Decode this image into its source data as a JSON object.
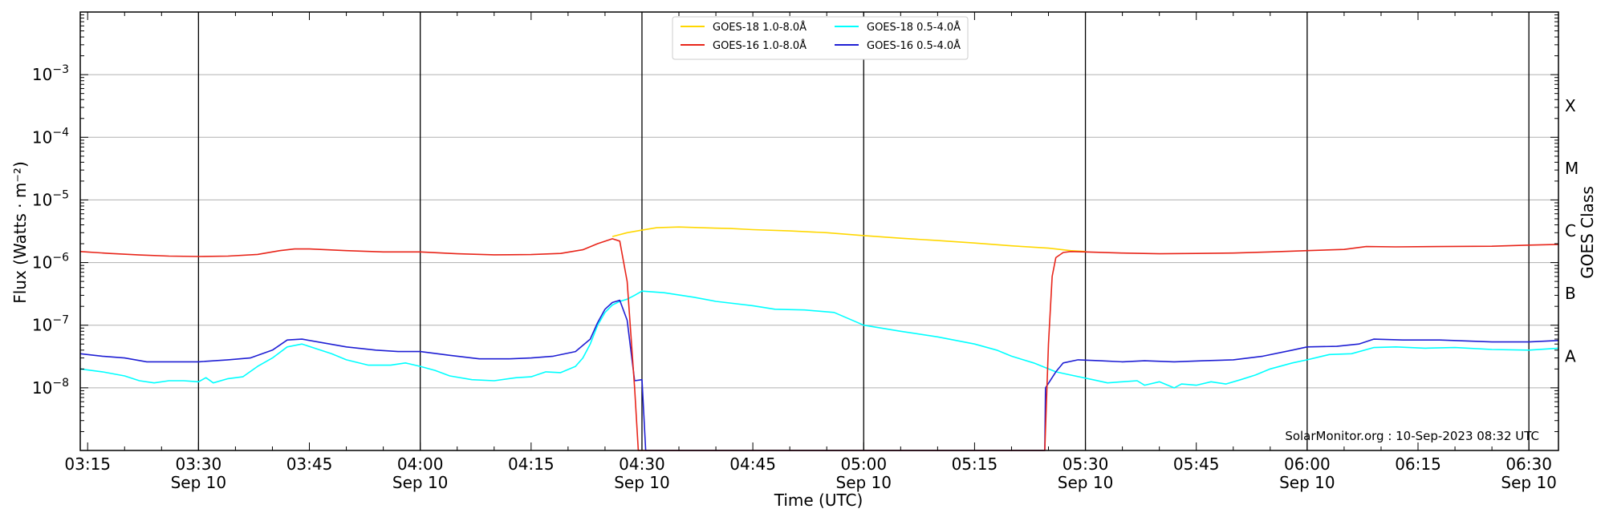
{
  "chart_data": {
    "type": "line",
    "xlabel": "Time (UTC)",
    "ylabel": "Flux (Watts · m⁻²)",
    "y2label": "GOES Class",
    "yscale": "log",
    "ylim": [
      1e-09,
      0.01
    ],
    "xlim": [
      "03:14",
      "06:34"
    ],
    "grid": "horizontal major lines; vertical lines at 30-minute intervals",
    "legend_position": "top-center",
    "credit": "SolarMonitor.org : 10-Sep-2023 08:32 UTC",
    "x_ticks": [
      {
        "t": "03:15",
        "line1": "03:15",
        "line2": ""
      },
      {
        "t": "03:30",
        "line1": "03:30",
        "line2": "Sep 10"
      },
      {
        "t": "03:45",
        "line1": "03:45",
        "line2": ""
      },
      {
        "t": "04:00",
        "line1": "04:00",
        "line2": "Sep 10"
      },
      {
        "t": "04:15",
        "line1": "04:15",
        "line2": ""
      },
      {
        "t": "04:30",
        "line1": "04:30",
        "line2": "Sep 10"
      },
      {
        "t": "04:45",
        "line1": "04:45",
        "line2": ""
      },
      {
        "t": "05:00",
        "line1": "05:00",
        "line2": "Sep 10"
      },
      {
        "t": "05:15",
        "line1": "05:15",
        "line2": ""
      },
      {
        "t": "05:30",
        "line1": "05:30",
        "line2": "Sep 10"
      },
      {
        "t": "05:45",
        "line1": "05:45",
        "line2": ""
      },
      {
        "t": "06:00",
        "line1": "06:00",
        "line2": "Sep 10"
      },
      {
        "t": "06:15",
        "line1": "06:15",
        "line2": ""
      },
      {
        "t": "06:30",
        "line1": "06:30",
        "line2": "Sep 10"
      }
    ],
    "vertical_lines": [
      "03:30",
      "04:00",
      "04:30",
      "05:00",
      "05:30",
      "06:00",
      "06:30"
    ],
    "y_ticks": [
      {
        "value": 1e-08,
        "base": "10",
        "exp": "−8"
      },
      {
        "value": 1e-07,
        "base": "10",
        "exp": "−7"
      },
      {
        "value": 1e-06,
        "base": "10",
        "exp": "−6"
      },
      {
        "value": 1e-05,
        "base": "10",
        "exp": "−5"
      },
      {
        "value": 0.0001,
        "base": "10",
        "exp": "−4"
      },
      {
        "value": 0.001,
        "base": "10",
        "exp": "−3"
      }
    ],
    "goes_classes": [
      {
        "label": "A",
        "flux": 3.2e-08
      },
      {
        "label": "B",
        "flux": 3.2e-07
      },
      {
        "label": "C",
        "flux": 3.2e-06
      },
      {
        "label": "M",
        "flux": 3.2e-05
      },
      {
        "label": "X",
        "flux": 0.00032
      }
    ],
    "series": [
      {
        "name": "GOES-18 1.0-8.0Å",
        "color": "#ffd700",
        "points": [
          [
            "04:26",
            2.6e-06
          ],
          [
            "04:28",
            3e-06
          ],
          [
            "04:30",
            3.3e-06
          ],
          [
            "04:32",
            3.6e-06
          ],
          [
            "04:35",
            3.7e-06
          ],
          [
            "04:38",
            3.6e-06
          ],
          [
            "04:42",
            3.5e-06
          ],
          [
            "04:45",
            3.35e-06
          ],
          [
            "04:50",
            3.2e-06
          ],
          [
            "04:55",
            3e-06
          ],
          [
            "05:00",
            2.7e-06
          ],
          [
            "05:05",
            2.45e-06
          ],
          [
            "05:10",
            2.25e-06
          ],
          [
            "05:15",
            2.05e-06
          ],
          [
            "05:20",
            1.85e-06
          ],
          [
            "05:25",
            1.7e-06
          ],
          [
            "05:28",
            1.55e-06
          ],
          [
            "05:30",
            1.5e-06
          ]
        ]
      },
      {
        "name": "GOES-16 1.0-8.0Å",
        "color": "#e8251a",
        "points": [
          [
            "03:14",
            1.5e-06
          ],
          [
            "03:18",
            1.4e-06
          ],
          [
            "03:22",
            1.32e-06
          ],
          [
            "03:26",
            1.27e-06
          ],
          [
            "03:30",
            1.25e-06
          ],
          [
            "03:34",
            1.27e-06
          ],
          [
            "03:38",
            1.35e-06
          ],
          [
            "03:41",
            1.55e-06
          ],
          [
            "03:43",
            1.65e-06
          ],
          [
            "03:45",
            1.65e-06
          ],
          [
            "03:50",
            1.55e-06
          ],
          [
            "03:55",
            1.48e-06
          ],
          [
            "04:00",
            1.48e-06
          ],
          [
            "04:05",
            1.38e-06
          ],
          [
            "04:10",
            1.33e-06
          ],
          [
            "04:15",
            1.34e-06
          ],
          [
            "04:19",
            1.4e-06
          ],
          [
            "04:22",
            1.6e-06
          ],
          [
            "04:24",
            2e-06
          ],
          [
            "04:26",
            2.4e-06
          ],
          [
            "04:27",
            2.2e-06
          ],
          [
            "04:28",
            5e-07
          ],
          [
            "04:29",
            1e-08
          ],
          [
            "04:29.5",
            1e-09
          ],
          [
            "05:24.5",
            1e-09
          ],
          [
            "05:25",
            5e-08
          ],
          [
            "05:25.5",
            6e-07
          ],
          [
            "05:26",
            1.2e-06
          ],
          [
            "05:27",
            1.45e-06
          ],
          [
            "05:28",
            1.5e-06
          ],
          [
            "05:30",
            1.48e-06
          ],
          [
            "05:35",
            1.42e-06
          ],
          [
            "05:40",
            1.38e-06
          ],
          [
            "05:45",
            1.4e-06
          ],
          [
            "05:50",
            1.42e-06
          ],
          [
            "05:55",
            1.48e-06
          ],
          [
            "06:00",
            1.55e-06
          ],
          [
            "06:05",
            1.62e-06
          ],
          [
            "06:08",
            1.8e-06
          ],
          [
            "06:12",
            1.78e-06
          ],
          [
            "06:18",
            1.8e-06
          ],
          [
            "06:25",
            1.82e-06
          ],
          [
            "06:30",
            1.9e-06
          ],
          [
            "06:34",
            1.95e-06
          ]
        ]
      },
      {
        "name": "GOES-18 0.5-4.0Å",
        "color": "#00ffff",
        "points": [
          [
            "03:14",
            2e-08
          ],
          [
            "03:17",
            1.8e-08
          ],
          [
            "03:20",
            1.55e-08
          ],
          [
            "03:22",
            1.3e-08
          ],
          [
            "03:24",
            1.2e-08
          ],
          [
            "03:26",
            1.3e-08
          ],
          [
            "03:28",
            1.3e-08
          ],
          [
            "03:30",
            1.25e-08
          ],
          [
            "03:31",
            1.45e-08
          ],
          [
            "03:32",
            1.2e-08
          ],
          [
            "03:34",
            1.4e-08
          ],
          [
            "03:36",
            1.5e-08
          ],
          [
            "03:38",
            2.2e-08
          ],
          [
            "03:40",
            3e-08
          ],
          [
            "03:42",
            4.5e-08
          ],
          [
            "03:44",
            5e-08
          ],
          [
            "03:46",
            4.2e-08
          ],
          [
            "03:48",
            3.5e-08
          ],
          [
            "03:50",
            2.8e-08
          ],
          [
            "03:53",
            2.3e-08
          ],
          [
            "03:56",
            2.3e-08
          ],
          [
            "03:58",
            2.5e-08
          ],
          [
            "04:00",
            2.2e-08
          ],
          [
            "04:02",
            1.9e-08
          ],
          [
            "04:04",
            1.55e-08
          ],
          [
            "04:07",
            1.35e-08
          ],
          [
            "04:10",
            1.3e-08
          ],
          [
            "04:13",
            1.45e-08
          ],
          [
            "04:15",
            1.5e-08
          ],
          [
            "04:17",
            1.8e-08
          ],
          [
            "04:19",
            1.75e-08
          ],
          [
            "04:21",
            2.2e-08
          ],
          [
            "04:22",
            3e-08
          ],
          [
            "04:23",
            5e-08
          ],
          [
            "04:24",
            1e-07
          ],
          [
            "04:25",
            1.6e-07
          ],
          [
            "04:26",
            2.1e-07
          ],
          [
            "04:27",
            2.4e-07
          ],
          [
            "04:28",
            2.6e-07
          ],
          [
            "04:29",
            3e-07
          ],
          [
            "04:30",
            3.5e-07
          ],
          [
            "04:33",
            3.3e-07
          ],
          [
            "04:37",
            2.8e-07
          ],
          [
            "04:40",
            2.4e-07
          ],
          [
            "04:45",
            2.05e-07
          ],
          [
            "04:48",
            1.8e-07
          ],
          [
            "04:52",
            1.75e-07
          ],
          [
            "04:56",
            1.6e-07
          ],
          [
            "05:00",
            1e-07
          ],
          [
            "05:05",
            8e-08
          ],
          [
            "05:10",
            6.5e-08
          ],
          [
            "05:15",
            5e-08
          ],
          [
            "05:18",
            4e-08
          ],
          [
            "05:20",
            3.2e-08
          ],
          [
            "05:23",
            2.5e-08
          ],
          [
            "05:26",
            1.8e-08
          ],
          [
            "05:28",
            1.6e-08
          ],
          [
            "05:31",
            1.35e-08
          ],
          [
            "05:33",
            1.2e-08
          ],
          [
            "05:35",
            1.25e-08
          ],
          [
            "05:37",
            1.3e-08
          ],
          [
            "05:38",
            1.1e-08
          ],
          [
            "05:40",
            1.25e-08
          ],
          [
            "05:42",
            1e-08
          ],
          [
            "05:43",
            1.15e-08
          ],
          [
            "05:45",
            1.1e-08
          ],
          [
            "05:47",
            1.25e-08
          ],
          [
            "05:49",
            1.15e-08
          ],
          [
            "05:51",
            1.35e-08
          ],
          [
            "05:53",
            1.6e-08
          ],
          [
            "05:55",
            2e-08
          ],
          [
            "05:58",
            2.5e-08
          ],
          [
            "06:00",
            2.8e-08
          ],
          [
            "06:03",
            3.4e-08
          ],
          [
            "06:06",
            3.5e-08
          ],
          [
            "06:09",
            4.4e-08
          ],
          [
            "06:12",
            4.5e-08
          ],
          [
            "06:16",
            4.3e-08
          ],
          [
            "06:20",
            4.4e-08
          ],
          [
            "06:25",
            4.1e-08
          ],
          [
            "06:30",
            4e-08
          ],
          [
            "06:34",
            4.3e-08
          ]
        ]
      },
      {
        "name": "GOES-16 0.5-4.0Å",
        "color": "#1f1fd4",
        "points": [
          [
            "03:14",
            3.5e-08
          ],
          [
            "03:17",
            3.2e-08
          ],
          [
            "03:20",
            3e-08
          ],
          [
            "03:23",
            2.6e-08
          ],
          [
            "03:26",
            2.6e-08
          ],
          [
            "03:30",
            2.6e-08
          ],
          [
            "03:34",
            2.8e-08
          ],
          [
            "03:37",
            3e-08
          ],
          [
            "03:40",
            4e-08
          ],
          [
            "03:42",
            5.8e-08
          ],
          [
            "03:44",
            6e-08
          ],
          [
            "03:47",
            5.2e-08
          ],
          [
            "03:50",
            4.5e-08
          ],
          [
            "03:54",
            4e-08
          ],
          [
            "03:57",
            3.8e-08
          ],
          [
            "04:00",
            3.8e-08
          ],
          [
            "04:04",
            3.3e-08
          ],
          [
            "04:08",
            2.9e-08
          ],
          [
            "04:12",
            2.9e-08
          ],
          [
            "04:15",
            3e-08
          ],
          [
            "04:18",
            3.2e-08
          ],
          [
            "04:21",
            3.8e-08
          ],
          [
            "04:23",
            6e-08
          ],
          [
            "04:24",
            1.1e-07
          ],
          [
            "04:25",
            1.8e-07
          ],
          [
            "04:26",
            2.3e-07
          ],
          [
            "04:27",
            2.5e-07
          ],
          [
            "04:28",
            1.2e-07
          ],
          [
            "04:29",
            1.3e-08
          ],
          [
            "04:30",
            1.35e-08
          ],
          [
            "04:30.5",
            1e-09
          ],
          [
            "05:24.5",
            1e-09
          ],
          [
            "05:24.6",
            1e-08
          ],
          [
            "05:26",
            1.8e-08
          ],
          [
            "05:27",
            2.5e-08
          ],
          [
            "05:29",
            2.8e-08
          ],
          [
            "05:32",
            2.7e-08
          ],
          [
            "05:35",
            2.6e-08
          ],
          [
            "05:38",
            2.7e-08
          ],
          [
            "05:42",
            2.6e-08
          ],
          [
            "05:46",
            2.7e-08
          ],
          [
            "05:50",
            2.8e-08
          ],
          [
            "05:54",
            3.2e-08
          ],
          [
            "05:58",
            4e-08
          ],
          [
            "06:00",
            4.5e-08
          ],
          [
            "06:04",
            4.6e-08
          ],
          [
            "06:07",
            5e-08
          ],
          [
            "06:09",
            6e-08
          ],
          [
            "06:13",
            5.8e-08
          ],
          [
            "06:18",
            5.8e-08
          ],
          [
            "06:25",
            5.4e-08
          ],
          [
            "06:30",
            5.4e-08
          ],
          [
            "06:34",
            5.7e-08
          ]
        ]
      }
    ]
  }
}
